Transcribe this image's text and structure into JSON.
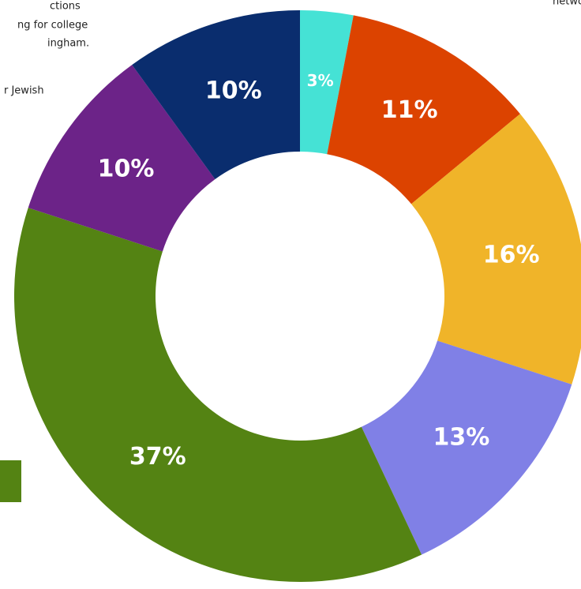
{
  "chart_data": {
    "type": "donut",
    "values": [
      3,
      11,
      16,
      13,
      37,
      10,
      10
    ],
    "value_labels": [
      "3%",
      "11%",
      "16%",
      "13%",
      "37%",
      "10%",
      "10%"
    ],
    "colors": [
      "#45e2d5",
      "#dc4300",
      "#f0b429",
      "#8080e6",
      "#548313",
      "#6c2388",
      "#0a2d6e"
    ],
    "annotations": [
      "ctions",
      "ng for college",
      "ingham.",
      "r Jewish",
      "networ"
    ]
  }
}
